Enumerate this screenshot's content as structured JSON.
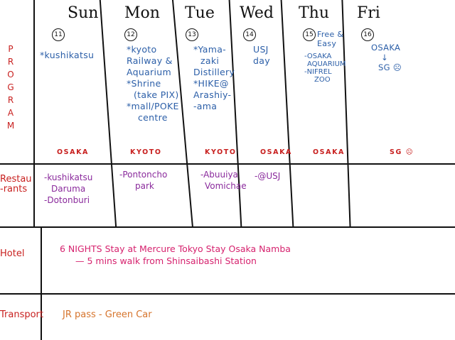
{
  "days": [
    {
      "name": "Sun",
      "date": "11",
      "program": [
        "*kushikatsu"
      ],
      "city": "OSAKA",
      "restaurants": [
        "-kushikatsu",
        "Daruma",
        "-Dotonburi"
      ]
    },
    {
      "name": "Mon",
      "date": "12",
      "program": [
        "*kyoto",
        "Railway &",
        "Aquarium",
        "*Shrine",
        "(take PIX)",
        "*mall/POKE",
        "centre"
      ],
      "city": "KYOTO",
      "restaurants": [
        "-Pontoncho",
        "park"
      ]
    },
    {
      "name": "Tue",
      "date": "13",
      "program": [
        "*Yama-",
        "zaki",
        "Distillery",
        "*HIKE@",
        "Arashiy-",
        "-ama"
      ],
      "city": "KYOTO",
      "restaurants": [
        "-Abuuiya",
        "Vomichae"
      ]
    },
    {
      "name": "Wed",
      "date": "14",
      "program": [
        "USJ",
        "day"
      ],
      "city": "OSAKA",
      "restaurants": [
        "-@USJ"
      ]
    },
    {
      "name": "Thu",
      "date": "15",
      "program_top": [
        "Free &",
        "Easy"
      ],
      "program": [
        "-OSAKA",
        "AQUARIUM",
        "-NIFREL",
        "ZOO"
      ],
      "city": "OSAKA",
      "restaurants": []
    },
    {
      "name": "Fri",
      "date": "16",
      "program": [
        "OSAKA",
        "↓",
        "SG ☹"
      ],
      "city": "SG ☹",
      "restaurants": []
    }
  ],
  "rows": {
    "program_letters": [
      "P",
      "R",
      "O",
      "G",
      "R",
      "A",
      "M"
    ],
    "restaurants_label": [
      "Restau",
      "-rants"
    ],
    "hotel_label": "Hotel",
    "transport_label": "Transport"
  },
  "hotel": {
    "line1": "6 NIGHTS Stay at Mercure Tokyo Stay Osaka Namba",
    "line2": "— 5 mins walk from Shinsaibashi Station"
  },
  "transport": {
    "text": "JR pass - Green Car"
  },
  "colors": {
    "program": "#2c5fa8",
    "city": "#c8201f",
    "restaurant": "#8a2a9c",
    "label": "#c8201f",
    "hotel": "#d6226e",
    "transport": "#d6742c"
  }
}
